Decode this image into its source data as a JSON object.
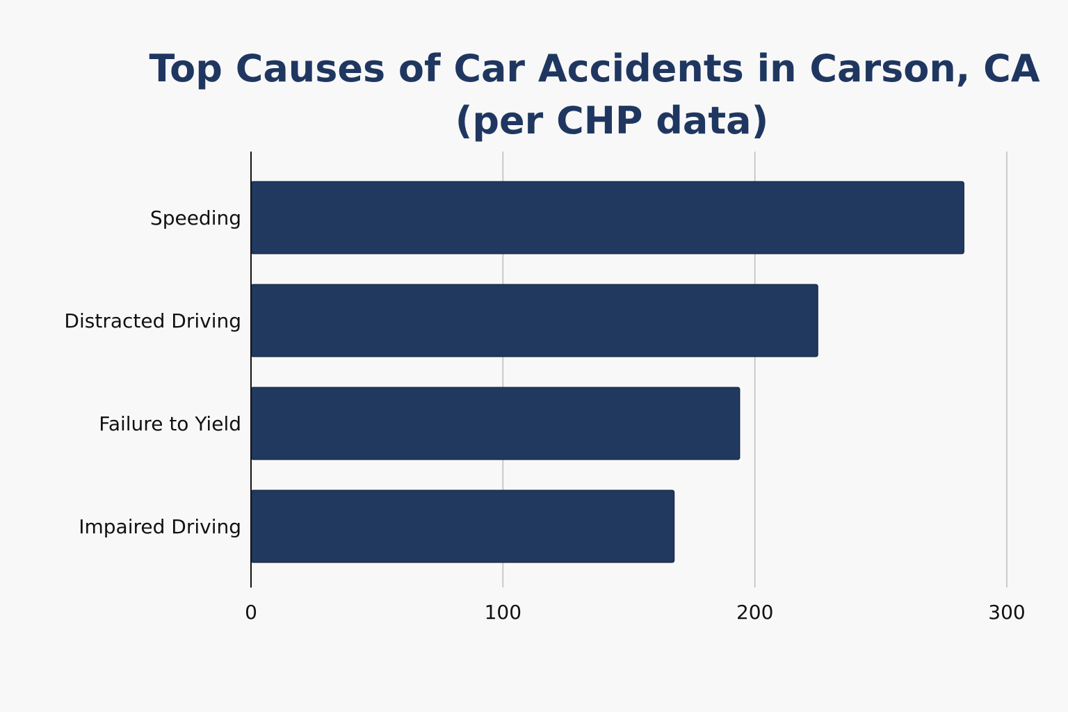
{
  "chart_data": {
    "type": "bar",
    "orientation": "horizontal",
    "title": [
      "Top Causes of Car Accidents in Carson, CA",
      "(per CHP data)"
    ],
    "xlabel": "",
    "ylabel": "",
    "categories": [
      "Speeding",
      "Distracted Driving",
      "Failure to Yield",
      "Impaired Driving"
    ],
    "values": [
      283,
      225,
      194,
      168
    ],
    "xlim": [
      0,
      300
    ],
    "xticks": [
      0,
      100,
      200,
      300
    ],
    "xtick_labels": [
      "0",
      "100",
      "200",
      "300"
    ],
    "grid": "vertical",
    "legend": "none",
    "colors": {
      "bar": "#21385f",
      "title": "#1f3760",
      "grid": "#bdbdbd",
      "axis": "#111111"
    }
  }
}
